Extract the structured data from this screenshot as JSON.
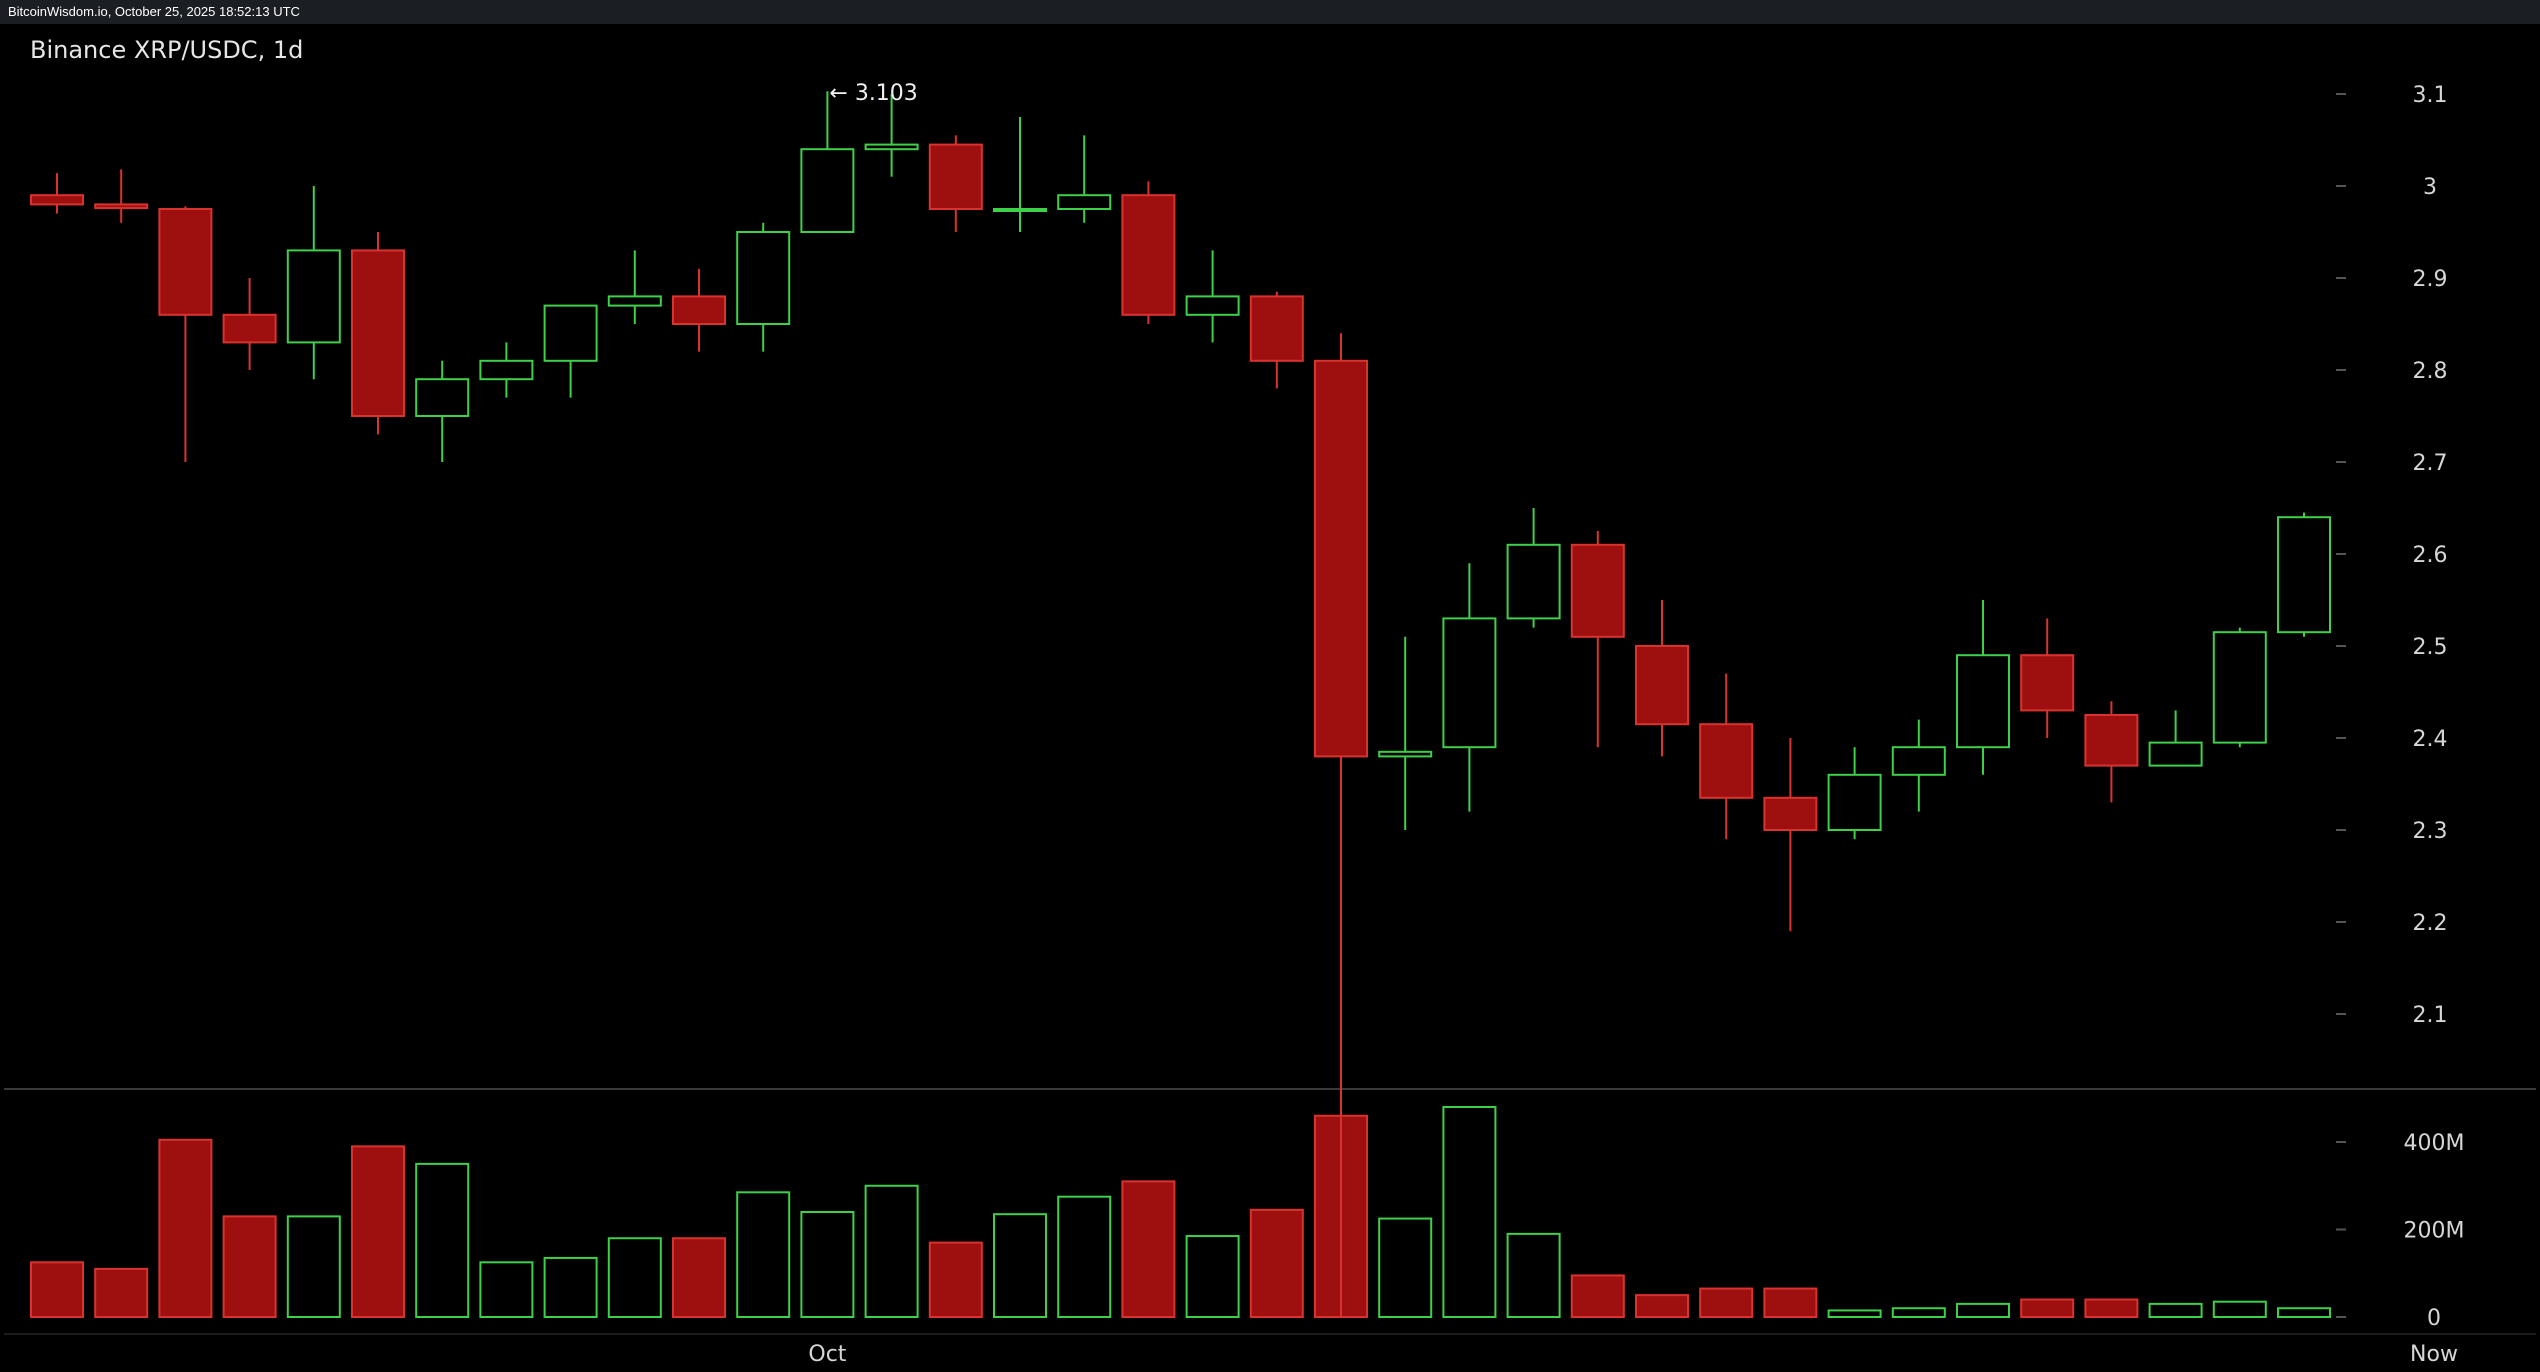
{
  "header": {
    "caption": "BitcoinWisdom.io, October 25, 2025 18:52:13 UTC"
  },
  "colors": {
    "up": "#3fd04a",
    "down": "#9e0f10",
    "down_edge": "#d9332f",
    "background": "#000000",
    "grid_tick": "#555555",
    "separator": "#3a3a3a"
  },
  "chart_data": {
    "type": "candlestick",
    "title": "Binance XRP/USDC, 1d",
    "price_axis": {
      "ylim": [
        2.0,
        3.1
      ],
      "ticks": [
        "3.1",
        "3",
        "2.9",
        "2.8",
        "2.7",
        "2.6",
        "2.5",
        "2.4",
        "2.3",
        "2.2",
        "2.1"
      ],
      "tick_values": [
        3.1,
        3.0,
        2.9,
        2.8,
        2.7,
        2.6,
        2.5,
        2.4,
        2.3,
        2.2,
        2.1
      ]
    },
    "volume_axis": {
      "ylim": [
        0,
        480
      ],
      "ticks": [
        "400M",
        "200M",
        "0"
      ],
      "tick_values": [
        400,
        200,
        0
      ],
      "unit": "M"
    },
    "x_axis": {
      "labels": [
        "Oct",
        "Now"
      ],
      "label_indices": [
        12,
        37
      ]
    },
    "annotations": [
      {
        "text": "← 3.103",
        "value": 3.103,
        "index": 12
      }
    ],
    "candles": [
      {
        "o": 2.99,
        "h": 3.014,
        "l": 2.97,
        "c": 2.98,
        "v": 125
      },
      {
        "o": 2.98,
        "h": 3.018,
        "l": 2.96,
        "c": 2.976,
        "v": 110
      },
      {
        "o": 2.975,
        "h": 2.978,
        "l": 2.7,
        "c": 2.86,
        "v": 405
      },
      {
        "o": 2.86,
        "h": 2.9,
        "l": 2.8,
        "c": 2.83,
        "v": 230
      },
      {
        "o": 2.83,
        "h": 3.0,
        "l": 2.79,
        "c": 2.93,
        "v": 230
      },
      {
        "o": 2.93,
        "h": 2.95,
        "l": 2.73,
        "c": 2.75,
        "v": 390
      },
      {
        "o": 2.75,
        "h": 2.81,
        "l": 2.7,
        "c": 2.79,
        "v": 350
      },
      {
        "o": 2.79,
        "h": 2.83,
        "l": 2.77,
        "c": 2.81,
        "v": 125
      },
      {
        "o": 2.81,
        "h": 2.87,
        "l": 2.77,
        "c": 2.87,
        "v": 135
      },
      {
        "o": 2.87,
        "h": 2.93,
        "l": 2.85,
        "c": 2.88,
        "v": 180
      },
      {
        "o": 2.88,
        "h": 2.91,
        "l": 2.82,
        "c": 2.85,
        "v": 180
      },
      {
        "o": 2.85,
        "h": 2.96,
        "l": 2.82,
        "c": 2.95,
        "v": 285
      },
      {
        "o": 2.95,
        "h": 3.103,
        "l": 2.95,
        "c": 3.04,
        "v": 240
      },
      {
        "o": 3.04,
        "h": 3.1,
        "l": 3.01,
        "c": 3.045,
        "v": 300
      },
      {
        "o": 3.045,
        "h": 3.055,
        "l": 2.95,
        "c": 2.975,
        "v": 170
      },
      {
        "o": 2.975,
        "h": 3.075,
        "l": 2.95,
        "c": 2.975,
        "v": 235
      },
      {
        "o": 2.975,
        "h": 3.055,
        "l": 2.96,
        "c": 2.99,
        "v": 275
      },
      {
        "o": 2.99,
        "h": 3.005,
        "l": 2.85,
        "c": 2.86,
        "v": 310
      },
      {
        "o": 2.86,
        "h": 2.93,
        "l": 2.83,
        "c": 2.88,
        "v": 185
      },
      {
        "o": 2.88,
        "h": 2.885,
        "l": 2.78,
        "c": 2.81,
        "v": 245
      },
      {
        "o": 2.81,
        "h": 2.84,
        "l": 1.77,
        "c": 2.38,
        "v": 460
      },
      {
        "o": 2.38,
        "h": 2.51,
        "l": 2.3,
        "c": 2.385,
        "v": 225
      },
      {
        "o": 2.39,
        "h": 2.59,
        "l": 2.32,
        "c": 2.53,
        "v": 480
      },
      {
        "o": 2.53,
        "h": 2.65,
        "l": 2.52,
        "c": 2.61,
        "v": 190
      },
      {
        "o": 2.61,
        "h": 2.625,
        "l": 2.39,
        "c": 2.51,
        "v": 95
      },
      {
        "o": 2.5,
        "h": 2.55,
        "l": 2.38,
        "c": 2.415,
        "v": 50
      },
      {
        "o": 2.415,
        "h": 2.47,
        "l": 2.29,
        "c": 2.335,
        "v": 65
      },
      {
        "o": 2.335,
        "h": 2.4,
        "l": 2.19,
        "c": 2.3,
        "v": 65
      },
      {
        "o": 2.3,
        "h": 2.39,
        "l": 2.29,
        "c": 2.36,
        "v": 15
      },
      {
        "o": 2.36,
        "h": 2.42,
        "l": 2.32,
        "c": 2.39,
        "v": 20
      },
      {
        "o": 2.39,
        "h": 2.55,
        "l": 2.36,
        "c": 2.49,
        "v": 30
      },
      {
        "o": 2.49,
        "h": 2.53,
        "l": 2.4,
        "c": 2.43,
        "v": 40
      },
      {
        "o": 2.425,
        "h": 2.44,
        "l": 2.33,
        "c": 2.37,
        "v": 40
      },
      {
        "o": 2.37,
        "h": 2.43,
        "l": 2.37,
        "c": 2.395,
        "v": 30
      },
      {
        "o": 2.395,
        "h": 2.52,
        "l": 2.39,
        "c": 2.515,
        "v": 35
      },
      {
        "o": 2.515,
        "h": 2.645,
        "l": 2.51,
        "c": 2.64,
        "v": 20
      }
    ]
  }
}
